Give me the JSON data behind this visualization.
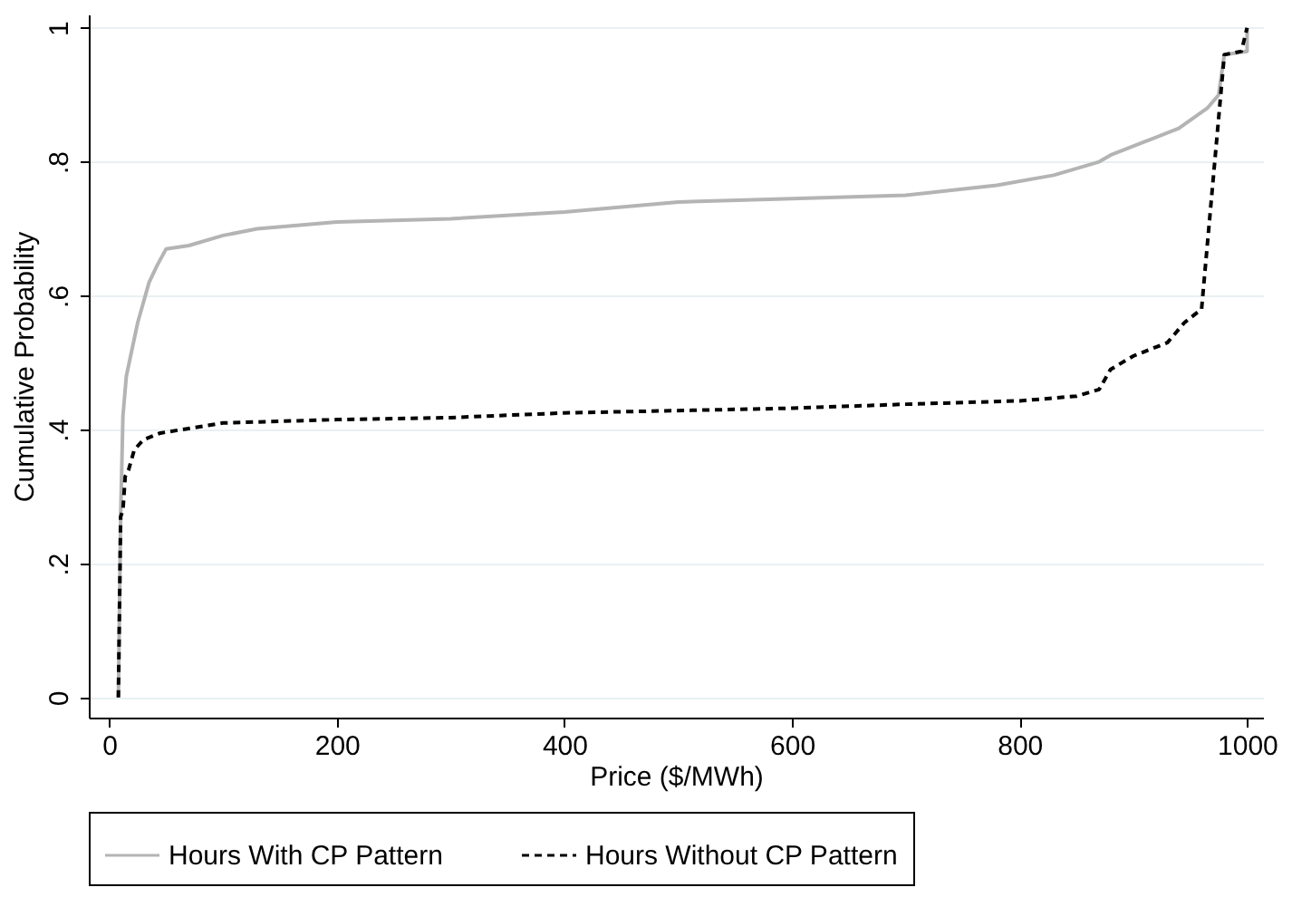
{
  "chart_data": {
    "type": "line",
    "xlabel": "Price ($/MWh)",
    "ylabel": "Cumulative Probability",
    "xlim": [
      -18,
      1014
    ],
    "xticks": [
      0,
      200,
      400,
      600,
      800,
      1000
    ],
    "ylim": [
      -0.03,
      1.02
    ],
    "yticks": [
      0,
      {
        "value": 0.2,
        "label": ".2"
      },
      {
        "value": 0.4,
        "label": ".4"
      },
      {
        "value": 0.6,
        "label": ".6"
      },
      {
        "value": 0.8,
        "label": ".8"
      },
      1
    ],
    "grid": "y",
    "legend": "bottom",
    "series": [
      {
        "name": "Hours With CP Pattern",
        "color": "#b4b4b4",
        "line_style": "solid",
        "x": [
          8,
          10,
          12,
          15,
          20,
          25,
          30,
          35,
          42,
          50,
          70,
          100,
          130,
          200,
          300,
          400,
          500,
          600,
          700,
          780,
          830,
          870,
          880,
          910,
          940,
          965,
          975,
          980,
          1000,
          1000
        ],
        "values": [
          0,
          0.27,
          0.42,
          0.48,
          0.52,
          0.56,
          0.59,
          0.62,
          0.645,
          0.67,
          0.675,
          0.69,
          0.7,
          0.71,
          0.715,
          0.725,
          0.74,
          0.745,
          0.75,
          0.765,
          0.78,
          0.8,
          0.81,
          0.83,
          0.85,
          0.88,
          0.9,
          0.96,
          0.965,
          1
        ]
      },
      {
        "name": "Hours Without CP Pattern",
        "color": "#000000",
        "line_style": "dashed",
        "x": [
          8,
          10,
          12,
          14,
          17,
          22,
          30,
          45,
          100,
          200,
          300,
          400,
          600,
          700,
          800,
          850,
          870,
          880,
          900,
          930,
          945,
          960,
          980,
          995,
          1000
        ],
        "values": [
          0,
          0.27,
          0.28,
          0.33,
          0.34,
          0.37,
          0.385,
          0.395,
          0.41,
          0.415,
          0.418,
          0.425,
          0.432,
          0.438,
          0.443,
          0.45,
          0.46,
          0.49,
          0.51,
          0.53,
          0.56,
          0.58,
          0.96,
          0.965,
          1
        ]
      }
    ]
  }
}
